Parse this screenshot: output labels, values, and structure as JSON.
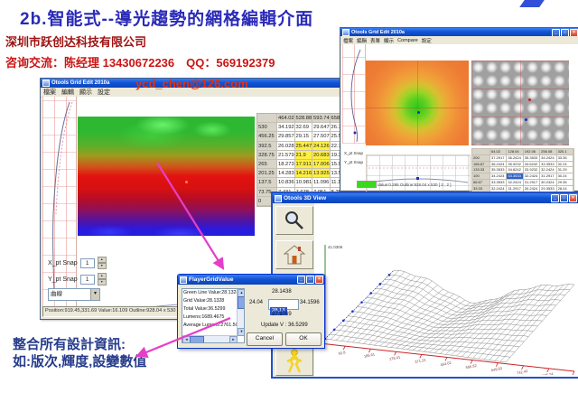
{
  "slide": {
    "title": "2b.智能式--導光趨勢的網格編輯介面",
    "company": "深圳市跃创达科技有限公司",
    "contact": "咨询交流：陈经理  13430672236　QQ：569192379",
    "email": "ycd_chen@126.com",
    "note_line1": "整合所有設計資訊:",
    "note_line2": "如:版次,輝度,設變數值"
  },
  "main_window": {
    "title": "Otools Grid Edit 2010a",
    "menus": [
      "檔案",
      "編輯",
      "顯示",
      "設定"
    ],
    "table": {
      "headers": [
        "",
        "464.02",
        "528.88",
        "593.74",
        "658.6"
      ],
      "rows": [
        {
          "label": "530",
          "values": [
            "34.192",
            "32.69",
            "29.647",
            "26.78"
          ]
        },
        {
          "label": "456.25",
          "values": [
            "29.857",
            "29.15",
            "27.507",
            "25.596"
          ]
        },
        {
          "label": "392.5",
          "values": [
            "26.028",
            "25.447",
            "24.126",
            "22.716"
          ],
          "hl": [
            1,
            2
          ]
        },
        {
          "label": "328.75",
          "values": [
            "21.579",
            "21.9",
            "20.683",
            "19.331"
          ],
          "hl": [
            1,
            2
          ]
        },
        {
          "label": "265",
          "values": [
            "18.273",
            "17.911",
            "17.006",
            "15.982"
          ],
          "hl": [
            1,
            2
          ]
        },
        {
          "label": "201.25",
          "values": [
            "14.283",
            "14.216",
            "13.925",
            "13.554"
          ],
          "hl": [
            1,
            2
          ]
        },
        {
          "label": "137.5",
          "values": [
            "10.836",
            "10.981",
            "11.096",
            "11.176"
          ]
        },
        {
          "label": "73.75",
          "values": [
            "7.431",
            "7.678",
            "7.951",
            "8.251"
          ]
        },
        {
          "label": "0",
          "values": [
            "3.94",
            "4.22",
            "4.577",
            "5.026"
          ],
          "sel": 2
        }
      ]
    },
    "x_snap_label": "X_pt Snap",
    "x_snap_value": "1",
    "y_snap_label": "Y_pt Snap",
    "y_snap_value": "1",
    "mode_value": "曲線",
    "axis_label_1": "35.9",
    "axis_label_2": "35.68",
    "status": "Position:919.45,331.69 Value:16.109 Outline:928.04 x 530 [ 15 , 9 ]"
  },
  "trend_window": {
    "title": "Otools Grid Edit 2010a",
    "menus": [
      "檔案",
      "編輯",
      "表單",
      "顯示",
      "Compare",
      "設定"
    ],
    "x_snap_label": "X_pt Snap",
    "y_snap_label": "Y_pt Snap",
    "status": "Value:0.295 Outline:928.04 x 530 [ 2 , 2 ]",
    "table": {
      "headers": [
        "",
        "64.02",
        "128.04",
        "192.06",
        "256.08",
        "320.1"
      ],
      "rows": [
        {
          "label": "200",
          "values": [
            "37.2917",
            "36.2424",
            "35.3533",
            "34.2424",
            "33.35"
          ]
        },
        {
          "label": "166.67",
          "values": [
            "36.2424",
            "35.9232",
            "34.6242",
            "33.3533",
            "32.24"
          ]
        },
        {
          "label": "133.33",
          "values": [
            "35.3533",
            "34.6242",
            "33.9232",
            "32.2424",
            "31.29"
          ]
        },
        {
          "label": "100",
          "values": [
            "34.2424",
            "33.3533",
            "32.2424",
            "31.2917",
            "30.24"
          ],
          "sel": 1
        },
        {
          "label": "66.67",
          "values": [
            "33.3533",
            "32.2424",
            "31.2917",
            "30.2424",
            "29.35"
          ]
        },
        {
          "label": "33.33",
          "values": [
            "32.2424",
            "31.2917",
            "30.2424",
            "29.3533",
            "28.24"
          ]
        },
        {
          "label": "0",
          "values": [
            "31.2917",
            "30.2424",
            "29.3533",
            "28.2424",
            "27.29"
          ]
        }
      ]
    }
  },
  "view3d": {
    "title": "Otools 3D View",
    "z_axis_label": "41.0306",
    "x_ticks": [
      "92.8",
      "185.61",
      "278.41",
      "371.22",
      "464.02",
      "556.82",
      "649.63",
      "742.43",
      "835.24",
      "928.04"
    ]
  },
  "dialog": {
    "title": "FlayerGridValue",
    "items": [
      "Green Line Value:28.1328",
      "Grid Value:28.1328",
      "Total Value:36.5299",
      "Lumens:1689.4675",
      "Average Lumens:2761.5062"
    ],
    "top_value": "28.1438",
    "left_value": "24.04",
    "input_value": "28.13",
    "right_value": "34.1596",
    "center_value": "27.9769",
    "update_text": "Update V : 36.5299",
    "cancel_label": "Cancel",
    "ok_label": "OK"
  }
}
